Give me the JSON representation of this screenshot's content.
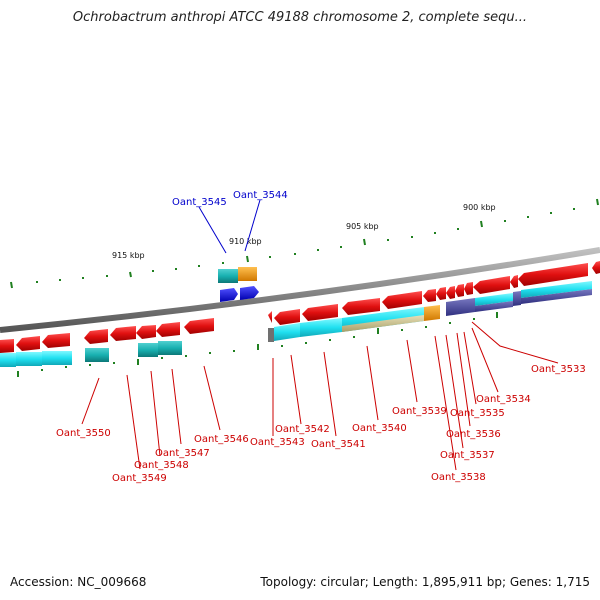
{
  "title": "Ochrobactrum anthropi ATCC 49188 chromosome 2, complete sequ...",
  "footer": {
    "accession": "Accession: NC_009668",
    "stats": "Topology: circular; Length: 1,895,911 bp; Genes: 1,715"
  },
  "colors": {
    "forward_gene": "#e01010",
    "reverse_gene": "#e01010",
    "cds_cyan": "#20e0f0",
    "cds_teal": "#18b0b0",
    "cds_khaki": "#c8c090",
    "cds_orange": "#f09000",
    "cds_navy": "#5050a0",
    "blue_gene": "#1010f0",
    "backbone": "#888888",
    "tick": "#208020"
  },
  "kbp_labels": [
    "915 kbp",
    "910 kbp",
    "905 kbp",
    "900 kbp"
  ],
  "gene_labels_red": [
    "Oant_3550",
    "Oant_3549",
    "Oant_3548",
    "Oant_3547",
    "Oant_3546",
    "Oant_3543",
    "Oant_3542",
    "Oant_3541",
    "Oant_3540",
    "Oant_3539",
    "Oant_3538",
    "Oant_3537",
    "Oant_3536",
    "Oant_3535",
    "Oant_3534",
    "Oant_3533"
  ],
  "gene_labels_blue": [
    "Oant_3545",
    "Oant_3544"
  ]
}
